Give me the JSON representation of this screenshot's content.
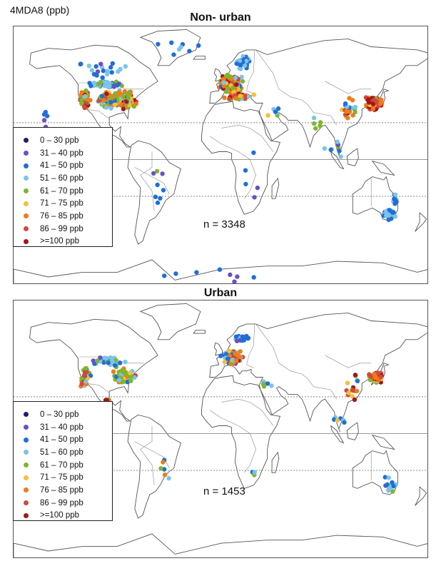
{
  "figure_label": "4MDA8 (ppb)",
  "colors": {
    "land_outline": "#555555",
    "border_line": "#888888",
    "ocean": "#ffffff"
  },
  "legend_bins": [
    {
      "label": "0 – 30  ppb",
      "color": "#2b1a6b"
    },
    {
      "label": "31 – 40  ppb",
      "color": "#6a4fc7"
    },
    {
      "label": "41 – 50  ppb",
      "color": "#1f6fd6"
    },
    {
      "label": "51 – 60  ppb",
      "color": "#7cc3ea"
    },
    {
      "label": "61 – 70  ppb",
      "color": "#7fb52d"
    },
    {
      "label": "71 – 75  ppb",
      "color": "#f4c03a"
    },
    {
      "label": "76 – 85  ppb",
      "color": "#f07b1a"
    },
    {
      "label": "86 – 99  ppb",
      "color": "#cf4a3c"
    },
    {
      "label": ">=100  ppb",
      "color": "#a3161b"
    }
  ],
  "panels": [
    {
      "title": "Non- urban",
      "count_label": "n = 3348",
      "clusters": [
        {
          "region": "US east",
          "lon": -84,
          "lat": 38,
          "spread_lon": 9,
          "spread_lat": 5,
          "n": 140,
          "weights": [
            0,
            0,
            1,
            2,
            5,
            3,
            4,
            2,
            1
          ]
        },
        {
          "region": "US central",
          "lon": -98,
          "lat": 38,
          "spread_lon": 7,
          "spread_lat": 6,
          "n": 80,
          "weights": [
            0,
            0,
            1,
            3,
            5,
            3,
            3,
            2,
            1
          ]
        },
        {
          "region": "US west",
          "lon": -118,
          "lat": 38,
          "spread_lon": 4,
          "spread_lat": 6,
          "n": 60,
          "weights": [
            0,
            0,
            0,
            1,
            3,
            2,
            4,
            3,
            3
          ]
        },
        {
          "region": "US north",
          "lon": -100,
          "lat": 48,
          "spread_lon": 14,
          "spread_lat": 2,
          "n": 50,
          "weights": [
            0,
            1,
            3,
            5,
            2,
            0,
            0,
            0,
            0
          ]
        },
        {
          "region": "Canada",
          "lon": -100,
          "lat": 58,
          "spread_lon": 22,
          "spread_lat": 6,
          "n": 20,
          "weights": [
            0,
            1,
            4,
            3,
            0,
            0,
            0,
            0,
            0
          ]
        },
        {
          "region": "Europe",
          "lon": 8,
          "lat": 48,
          "spread_lon": 9,
          "spread_lat": 5,
          "n": 170,
          "weights": [
            0,
            0,
            1,
            2,
            4,
            3,
            5,
            3,
            2
          ]
        },
        {
          "region": "Scandinavia",
          "lon": 18,
          "lat": 62,
          "spread_lon": 7,
          "spread_lat": 4,
          "n": 35,
          "weights": [
            0,
            1,
            3,
            4,
            1,
            0,
            0,
            0,
            0
          ]
        },
        {
          "region": "Mediterranean",
          "lon": 16,
          "lat": 40,
          "spread_lon": 10,
          "spread_lat": 2,
          "n": 40,
          "weights": [
            0,
            0,
            0,
            1,
            3,
            2,
            4,
            3,
            2
          ]
        },
        {
          "region": "East Asia",
          "lon": 132,
          "lat": 36,
          "spread_lon": 6,
          "spread_lat": 4,
          "n": 110,
          "weights": [
            0,
            0,
            0,
            0,
            1,
            1,
            2,
            4,
            6
          ]
        },
        {
          "region": "China",
          "lon": 112,
          "lat": 32,
          "spread_lon": 8,
          "spread_lat": 6,
          "n": 25,
          "weights": [
            0,
            0,
            1,
            1,
            2,
            1,
            2,
            2,
            2
          ]
        },
        {
          "region": "Australia SE",
          "lon": 146,
          "lat": -35,
          "spread_lon": 5,
          "spread_lat": 3,
          "n": 25,
          "weights": [
            0,
            1,
            3,
            4,
            1,
            0,
            0,
            0,
            0
          ]
        },
        {
          "region": "Australia E",
          "lon": 151,
          "lat": -25,
          "spread_lon": 2,
          "spread_lat": 5,
          "n": 10,
          "weights": [
            0,
            1,
            3,
            3,
            1,
            0,
            0,
            0,
            0
          ]
        },
        {
          "region": "South America",
          "lon": -55,
          "lat": -20,
          "spread_lon": 10,
          "spread_lat": 15,
          "n": 8,
          "weights": [
            0,
            1,
            3,
            2,
            1,
            0,
            0,
            0,
            0
          ]
        },
        {
          "region": "Africa",
          "lon": 25,
          "lat": -10,
          "spread_lon": 10,
          "spread_lat": 15,
          "n": 5,
          "weights": [
            0,
            2,
            3,
            1,
            0,
            0,
            0,
            0,
            0
          ]
        },
        {
          "region": "Pacific",
          "lon": -155,
          "lat": 20,
          "spread_lon": 10,
          "spread_lat": 10,
          "n": 6,
          "weights": [
            0,
            2,
            3,
            1,
            0,
            0,
            0,
            0,
            0
          ]
        },
        {
          "region": "Antarctica",
          "lon": 20,
          "lat": -74,
          "spread_lon": 80,
          "spread_lat": 4,
          "n": 8,
          "weights": [
            0,
            3,
            3,
            0,
            0,
            0,
            0,
            0,
            0
          ]
        },
        {
          "region": "Middle East",
          "lon": 45,
          "lat": 30,
          "spread_lon": 8,
          "spread_lat": 4,
          "n": 6,
          "weights": [
            0,
            0,
            1,
            2,
            2,
            1,
            0,
            0,
            0
          ]
        },
        {
          "region": "Arctic",
          "lon": -30,
          "lat": 72,
          "spread_lon": 50,
          "spread_lat": 6,
          "n": 8,
          "weights": [
            0,
            1,
            4,
            2,
            0,
            0,
            0,
            0,
            0
          ]
        },
        {
          "region": "South Asia",
          "lon": 80,
          "lat": 22,
          "spread_lon": 6,
          "spread_lat": 6,
          "n": 5,
          "weights": [
            0,
            1,
            1,
            1,
            1,
            0,
            0,
            0,
            0
          ]
        },
        {
          "region": "SE Asia",
          "lon": 102,
          "lat": 5,
          "spread_lon": 10,
          "spread_lat": 8,
          "n": 8,
          "weights": [
            0,
            1,
            3,
            2,
            1,
            0,
            0,
            0,
            0
          ]
        }
      ]
    },
    {
      "title": "Urban",
      "count_label": "n = 1453",
      "clusters": [
        {
          "region": "US east",
          "lon": -84,
          "lat": 37,
          "spread_lon": 8,
          "spread_lat": 5,
          "n": 70,
          "weights": [
            0,
            0,
            1,
            3,
            4,
            2,
            3,
            1,
            1
          ]
        },
        {
          "region": "US west",
          "lon": -118,
          "lat": 36,
          "spread_lon": 4,
          "spread_lat": 6,
          "n": 30,
          "weights": [
            0,
            0,
            1,
            1,
            2,
            2,
            3,
            2,
            2
          ]
        },
        {
          "region": "US north",
          "lon": -100,
          "lat": 46,
          "spread_lon": 14,
          "spread_lat": 3,
          "n": 35,
          "weights": [
            0,
            1,
            3,
            5,
            2,
            0,
            0,
            0,
            0
          ]
        },
        {
          "region": "Mexico",
          "lon": -99,
          "lat": 20,
          "spread_lon": 3,
          "spread_lat": 2,
          "n": 8,
          "weights": [
            0,
            0,
            0,
            0,
            1,
            1,
            2,
            2,
            3
          ]
        },
        {
          "region": "Europe",
          "lon": 10,
          "lat": 49,
          "spread_lon": 8,
          "spread_lat": 4,
          "n": 140,
          "weights": [
            0,
            1,
            3,
            3,
            4,
            3,
            4,
            2,
            1
          ]
        },
        {
          "region": "Scandinavia",
          "lon": 18,
          "lat": 61,
          "spread_lon": 6,
          "spread_lat": 3,
          "n": 20,
          "weights": [
            0,
            1,
            3,
            3,
            1,
            0,
            0,
            0,
            0
          ]
        },
        {
          "region": "East Asia",
          "lon": 134,
          "lat": 36,
          "spread_lon": 5,
          "spread_lat": 3,
          "n": 60,
          "weights": [
            0,
            0,
            0,
            0,
            1,
            1,
            2,
            4,
            5
          ]
        },
        {
          "region": "China",
          "lon": 115,
          "lat": 28,
          "spread_lon": 6,
          "spread_lat": 8,
          "n": 15,
          "weights": [
            0,
            0,
            1,
            1,
            2,
            1,
            2,
            2,
            1
          ]
        },
        {
          "region": "Australia",
          "lon": 146,
          "lat": -33,
          "spread_lon": 6,
          "spread_lat": 5,
          "n": 15,
          "weights": [
            0,
            1,
            3,
            3,
            1,
            0,
            0,
            0,
            0
          ]
        },
        {
          "region": "South America",
          "lon": -50,
          "lat": -23,
          "spread_lon": 6,
          "spread_lat": 6,
          "n": 6,
          "weights": [
            0,
            0,
            1,
            1,
            2,
            1,
            1,
            0,
            0
          ]
        },
        {
          "region": "Africa",
          "lon": 28,
          "lat": -26,
          "spread_lon": 3,
          "spread_lat": 3,
          "n": 3,
          "weights": [
            0,
            0,
            1,
            1,
            1,
            0,
            0,
            0,
            0
          ]
        },
        {
          "region": "Middle East",
          "lon": 38,
          "lat": 31,
          "spread_lon": 6,
          "spread_lat": 3,
          "n": 5,
          "weights": [
            0,
            0,
            1,
            1,
            2,
            1,
            0,
            0,
            0
          ]
        },
        {
          "region": "SE Asia",
          "lon": 104,
          "lat": 10,
          "spread_lon": 8,
          "spread_lat": 6,
          "n": 6,
          "weights": [
            0,
            0,
            2,
            2,
            1,
            1,
            0,
            0,
            0
          ]
        }
      ]
    }
  ]
}
